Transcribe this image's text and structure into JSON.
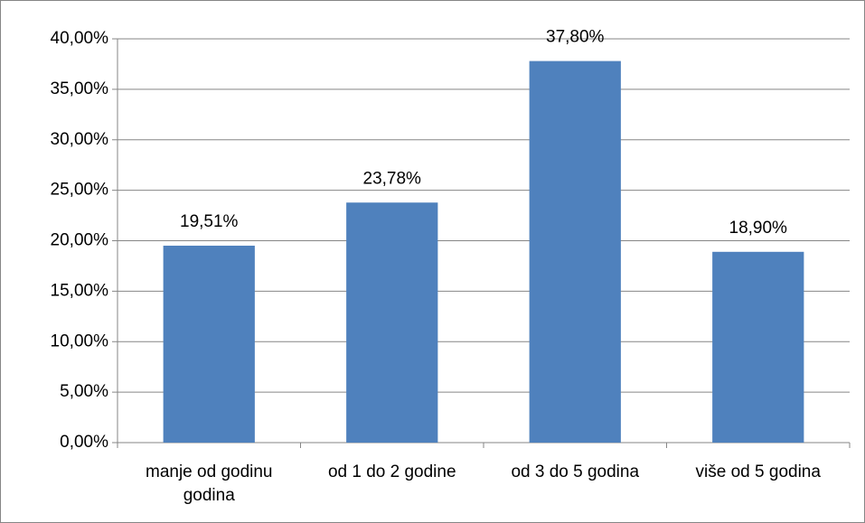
{
  "chart_data": {
    "type": "bar",
    "categories": [
      "manje od godinu godina",
      "od 1 do 2 godine",
      "od 3 do 5 godina",
      "više od 5 godina"
    ],
    "values": [
      19.51,
      23.78,
      37.8,
      18.9
    ],
    "value_labels": [
      "19,51%",
      "23,78%",
      "37,80%",
      "18,90%"
    ],
    "color": "#4f81bd",
    "ylim": [
      0,
      40
    ],
    "yticks": [
      {
        "value": 0,
        "label": "0,00%"
      },
      {
        "value": 5,
        "label": "5,00%"
      },
      {
        "value": 10,
        "label": "10,00%"
      },
      {
        "value": 15,
        "label": "15,00%"
      },
      {
        "value": 20,
        "label": "20,00%"
      },
      {
        "value": 25,
        "label": "25,00%"
      },
      {
        "value": 30,
        "label": "30,00%"
      },
      {
        "value": 35,
        "label": "35,00%"
      },
      {
        "value": 40,
        "label": "40,00%"
      }
    ],
    "grid": true
  }
}
